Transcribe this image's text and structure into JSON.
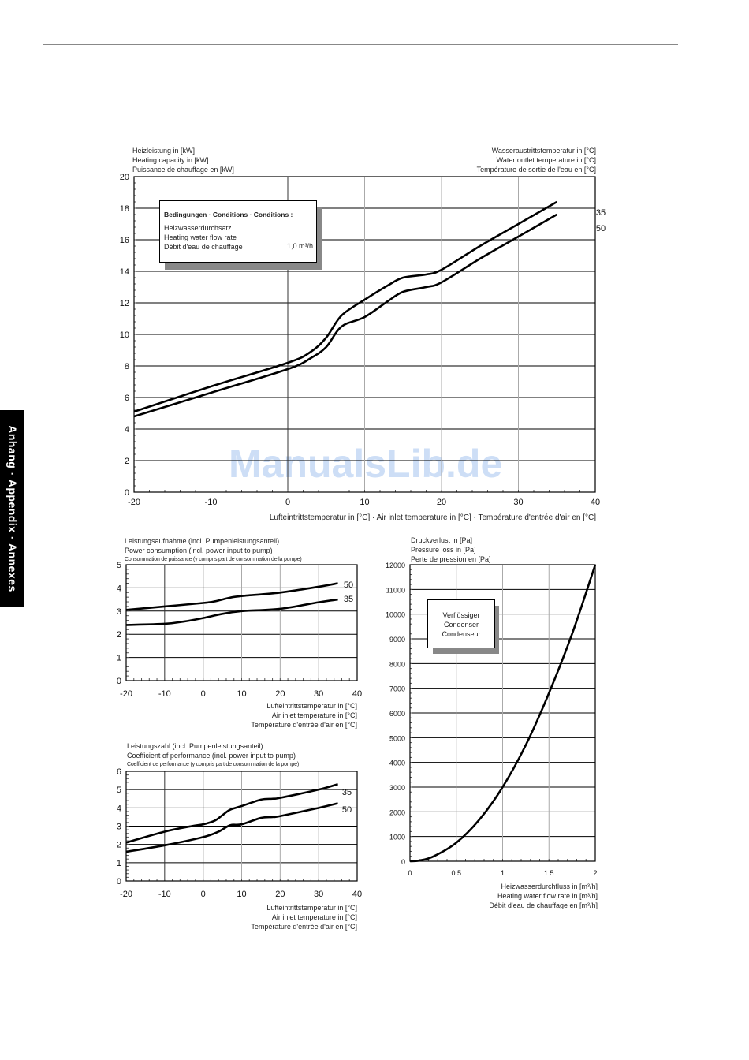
{
  "side_tab": "Anhang · Appendix · Annexes",
  "watermark": "ManualsLib.de",
  "chart_data": [
    {
      "id": "heating_capacity",
      "type": "line",
      "ylabel_lines": [
        "Heizleistung in [kW]",
        "Heating capacity in [kW]",
        "Puissance de chauffage en [kW]"
      ],
      "legend_title_lines": [
        "Wasseraustrittstemperatur in [°C]",
        "Water outlet temperature in [°C]",
        "Température de sortie de l'eau en [°C]"
      ],
      "xlabel": "Lufteintrittstemperatur in [°C] · Air inlet temperature in [°C] · Température d'entrée d'air en [°C]",
      "xlim": [
        -20,
        40
      ],
      "ylim": [
        0,
        20
      ],
      "xticks": [
        "-20",
        "-10",
        "0",
        "10",
        "20",
        "30",
        "40"
      ],
      "yticks": [
        "0",
        "2",
        "4",
        "6",
        "8",
        "10",
        "12",
        "14",
        "16",
        "18",
        "20"
      ],
      "grid": true,
      "conditions": {
        "title": "Bedingungen · Conditions · Conditions :",
        "lines": [
          "Heizwasserdurchsatz",
          "Heating water flow rate",
          "Débit d'eau de chauffage"
        ],
        "value": "1,0 m³/h"
      },
      "series": [
        {
          "name": "35",
          "x": [
            -20,
            -10,
            0,
            3,
            5,
            7,
            10,
            13,
            15,
            18,
            20,
            25,
            30,
            35
          ],
          "y": [
            5.1,
            6.7,
            8.2,
            8.9,
            9.8,
            11.2,
            12.2,
            13.1,
            13.6,
            13.8,
            14.1,
            15.6,
            17.0,
            18.4
          ]
        },
        {
          "name": "50",
          "x": [
            -20,
            -10,
            0,
            3,
            5,
            7,
            10,
            13,
            15,
            18,
            20,
            25,
            30,
            35
          ],
          "y": [
            4.8,
            6.3,
            7.8,
            8.5,
            9.2,
            10.5,
            11.1,
            12.1,
            12.7,
            13.0,
            13.3,
            14.8,
            16.2,
            17.6
          ]
        }
      ]
    },
    {
      "id": "power_consumption",
      "type": "line",
      "title_lines": [
        "Leistungsaufnahme (incl. Pumpenleistungsanteil)",
        "Power consumption (incl. power input to pump)",
        "Consommation de puissance (y compris part de consommation de la pompe)"
      ],
      "xlabel_lines": [
        "Lufteintrittstemperatur in [°C]",
        "Air inlet temperature in [°C]",
        "Température d'entrée d'air en [°C]"
      ],
      "xlim": [
        -20,
        40
      ],
      "ylim": [
        0,
        5
      ],
      "xticks": [
        "-20",
        "-10",
        "0",
        "10",
        "20",
        "30",
        "40"
      ],
      "yticks": [
        "0",
        "1",
        "2",
        "3",
        "4",
        "5"
      ],
      "grid": true,
      "series": [
        {
          "name": "50",
          "x": [
            -20,
            -10,
            0,
            3,
            7,
            10,
            20,
            30,
            35
          ],
          "y": [
            3.05,
            3.2,
            3.35,
            3.42,
            3.58,
            3.65,
            3.8,
            4.05,
            4.2
          ]
        },
        {
          "name": "35",
          "x": [
            -20,
            -10,
            -5,
            0,
            5,
            10,
            20,
            30,
            35
          ],
          "y": [
            2.4,
            2.45,
            2.55,
            2.7,
            2.88,
            3.0,
            3.1,
            3.38,
            3.5
          ]
        }
      ]
    },
    {
      "id": "cop",
      "type": "line",
      "title_lines": [
        "Leistungszahl (incl. Pumpenleistungsanteil)",
        "Coefficient of performance (incl. power input to pump)",
        "Coefficient de performance (y compris part de consommation de la pompe)"
      ],
      "xlabel_lines": [
        "Lufteintrittstemperatur in [°C]",
        "Air inlet temperature in [°C]",
        "Température d'entrée d'air en [°C]"
      ],
      "xlim": [
        -20,
        40
      ],
      "ylim": [
        0,
        6
      ],
      "xticks": [
        "-20",
        "-10",
        "0",
        "10",
        "20",
        "30",
        "40"
      ],
      "yticks": [
        "0",
        "1",
        "2",
        "3",
        "4",
        "5",
        "6"
      ],
      "grid": true,
      "series": [
        {
          "name": "35",
          "x": [
            -20,
            -10,
            -3,
            0,
            3,
            5,
            7,
            10,
            15,
            18,
            20,
            30,
            35
          ],
          "y": [
            2.1,
            2.7,
            3.0,
            3.1,
            3.3,
            3.6,
            3.9,
            4.1,
            4.45,
            4.5,
            4.55,
            5.0,
            5.3
          ]
        },
        {
          "name": "50",
          "x": [
            -20,
            -10,
            0,
            4,
            7,
            10,
            15,
            18,
            20,
            30,
            35
          ],
          "y": [
            1.6,
            1.95,
            2.4,
            2.7,
            3.05,
            3.1,
            3.45,
            3.5,
            3.55,
            4.0,
            4.25
          ]
        }
      ]
    },
    {
      "id": "pressure_loss",
      "type": "line",
      "title_lines": [
        "Druckverlust in [Pa]",
        "Pressure loss in [Pa]",
        "Perte de pression en [Pa]"
      ],
      "xlabel_lines": [
        "Heizwasserdurchfluss in [m³/h]",
        "Heating water flow rate in [m³/h]",
        "Débit d'eau de chauffage en [m³/h]"
      ],
      "annotation_lines": [
        "Verflüssiger",
        "Condenser",
        "Condenseur"
      ],
      "xlim": [
        0,
        2
      ],
      "ylim": [
        0,
        12000
      ],
      "xticks": [
        "0",
        "0.5",
        "1",
        "1.5",
        "2"
      ],
      "yticks": [
        "0",
        "1000",
        "2000",
        "3000",
        "4000",
        "5000",
        "6000",
        "7000",
        "8000",
        "9000",
        "10000",
        "11000",
        "12000"
      ],
      "grid": true,
      "series": [
        {
          "x": [
            0,
            0.1,
            0.25,
            0.5,
            0.75,
            1.0,
            1.25,
            1.5,
            1.75,
            2.0
          ],
          "y": [
            0,
            30,
            190,
            750,
            1690,
            3000,
            4700,
            6800,
            9200,
            12000
          ]
        }
      ]
    }
  ]
}
